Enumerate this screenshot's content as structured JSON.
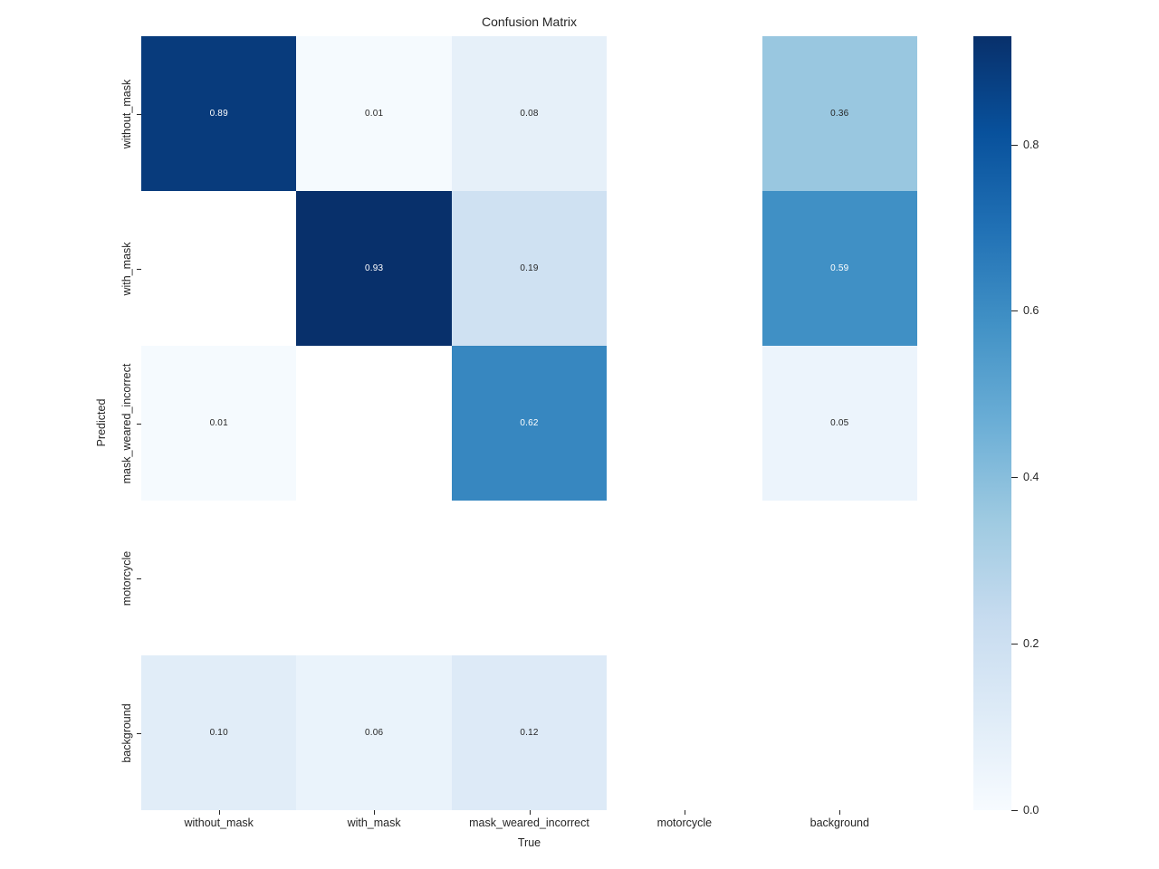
{
  "window": {
    "background_color": "#ffffff"
  },
  "chart_data": {
    "type": "heatmap",
    "title": "Confusion Matrix",
    "xlabel": "True",
    "ylabel": "Predicted",
    "x_categories": [
      "without_mask",
      "with_mask",
      "mask_weared_incorrect",
      "motorcycle",
      "background"
    ],
    "y_categories": [
      "without_mask",
      "with_mask",
      "mask_weared_incorrect",
      "motorcycle",
      "background"
    ],
    "matrix": [
      [
        0.89,
        0.01,
        0.08,
        null,
        0.36
      ],
      [
        null,
        0.93,
        0.19,
        null,
        0.59
      ],
      [
        0.01,
        null,
        0.62,
        null,
        0.05
      ],
      [
        null,
        null,
        null,
        null,
        null
      ],
      [
        0.1,
        0.06,
        0.12,
        null,
        null
      ]
    ],
    "vmin": 0,
    "vmax": 0.93,
    "colormap": "Blues",
    "colormap_anchors": [
      "#f7fbff",
      "#deebf7",
      "#c6dbef",
      "#9ecae1",
      "#6baed6",
      "#4292c6",
      "#2171b5",
      "#08519c",
      "#08306b"
    ],
    "missing_cell_color": "#ffffff",
    "annotation": {
      "decimals": 2,
      "light_text_color": "#ffffff",
      "dark_text_color": "#262626",
      "light_text_threshold": 0.5
    },
    "colorbar": {
      "position": "right",
      "ticks": [
        0.0,
        0.2,
        0.4,
        0.6,
        0.8
      ],
      "tick_labels": [
        "0.0",
        "0.2",
        "0.4",
        "0.6",
        "0.8"
      ]
    },
    "grid": false,
    "legend": null
  }
}
